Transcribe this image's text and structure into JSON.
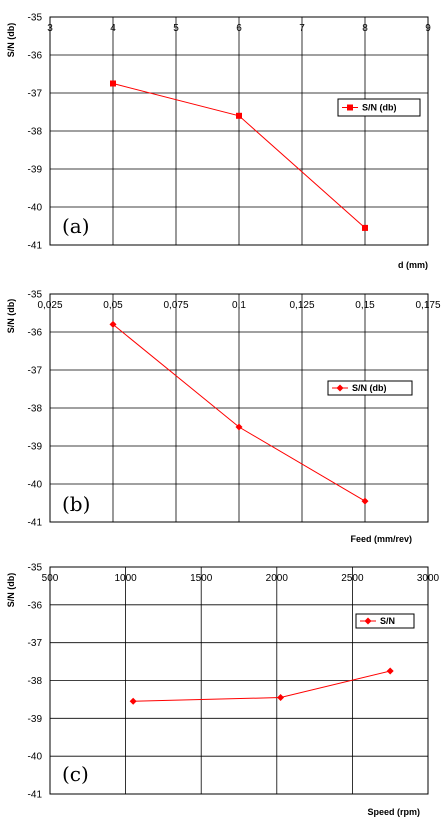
{
  "chart_data": [
    {
      "type": "line",
      "panel_letter": "(a)",
      "ylabel": "S/N (db)",
      "xlabel": "d (mm)",
      "xlim": [
        3,
        9
      ],
      "ylim": [
        -41,
        -35
      ],
      "x_ticks": [
        "3",
        "4",
        "5",
        "6",
        "7",
        "8",
        "9"
      ],
      "y_ticks": [
        "-35",
        "-36",
        "-37",
        "-38",
        "-39",
        "-40",
        "-41"
      ],
      "grid": true,
      "legend_position": "right",
      "marker": "square",
      "series": [
        {
          "name": "S/N (db)",
          "x": [
            4,
            6,
            8
          ],
          "values": [
            -36.75,
            -37.6,
            -40.55
          ]
        }
      ]
    },
    {
      "type": "line",
      "panel_letter": "(b)",
      "ylabel": "S/N (db)",
      "xlabel": "Feed (mm/rev)",
      "xlim": [
        0.025,
        0.175
      ],
      "ylim": [
        -41,
        -35
      ],
      "x_ticks": [
        "0,025",
        "0,05",
        "0,075",
        "0,1",
        "0,125",
        "0,15",
        "0,175"
      ],
      "y_ticks": [
        "-35",
        "-36",
        "-37",
        "-38",
        "-39",
        "-40",
        "-41"
      ],
      "grid": true,
      "legend_position": "right",
      "marker": "diamond",
      "series": [
        {
          "name": "S/N (db)",
          "x": [
            0.05,
            0.1,
            0.15
          ],
          "values": [
            -35.8,
            -38.5,
            -40.45
          ]
        }
      ]
    },
    {
      "type": "line",
      "panel_letter": "(c)",
      "ylabel": "S/N (db)",
      "xlabel": "Speed (rpm)",
      "xlim": [
        500,
        3000
      ],
      "ylim": [
        -41,
        -35
      ],
      "x_ticks": [
        "500",
        "1000",
        "1500",
        "2000",
        "2500",
        "3000"
      ],
      "y_ticks": [
        "-35",
        "-36",
        "-37",
        "-38",
        "-39",
        "-40",
        "-41"
      ],
      "grid": true,
      "legend_position": "right",
      "marker": "diamond",
      "series": [
        {
          "name": "S/N",
          "x": [
            1050,
            2025,
            2750
          ],
          "values": [
            -38.55,
            -38.45,
            -37.75
          ]
        }
      ]
    }
  ],
  "colors": {
    "series": "#ff0000",
    "grid": "#000000"
  }
}
